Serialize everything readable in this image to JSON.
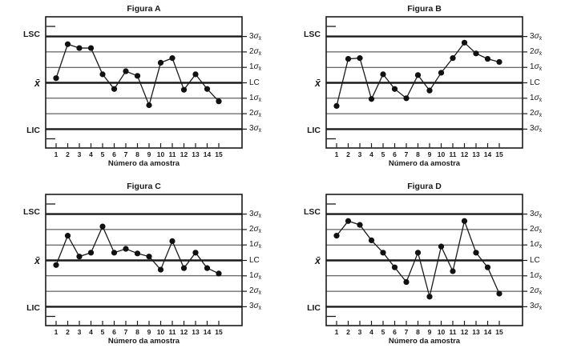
{
  "figure": {
    "background": "#ffffff",
    "ink_color": "#1a1a1a",
    "thin_line_color": "#3a3a3a"
  },
  "chart_data": [
    {
      "type": "line",
      "title": "Figura A",
      "xlabel": "Número da amostra",
      "x": [
        "1",
        "2",
        "3",
        "4",
        "5",
        "6",
        "7",
        "8",
        "9",
        "10",
        "11",
        "12",
        "13",
        "14",
        "15"
      ],
      "values_sigma": [
        0.3,
        2.5,
        2.25,
        2.25,
        0.55,
        -0.4,
        0.75,
        0.45,
        -1.45,
        1.3,
        1.6,
        -0.45,
        0.55,
        -0.4,
        -1.2
      ],
      "y_units": "sigma_from_center_line",
      "sigma_lines": [
        3,
        2,
        1,
        0,
        -1,
        -2,
        -3
      ],
      "plot_range_sigma": [
        -4.25,
        4.25
      ],
      "left_labels": {
        "lsc": "LSC",
        "center": "x̄",
        "lic": "LIC"
      },
      "right_labels": [
        {
          "coef": "3",
          "sym": "σ",
          "sub": "x̄"
        },
        {
          "coef": "2",
          "sym": "σ",
          "sub": "x̄"
        },
        {
          "coef": "1",
          "sym": "σ",
          "sub": "x̄"
        },
        {
          "coef": "LC",
          "sym": "",
          "sub": ""
        },
        {
          "coef": "1",
          "sym": "σ",
          "sub": "x̄"
        },
        {
          "coef": "2",
          "sym": "σ",
          "sub": "x̄"
        },
        {
          "coef": "3",
          "sym": "σ",
          "sub": "x̄"
        }
      ],
      "line_color": "#1a1a1a",
      "marker_color": "#111111"
    },
    {
      "type": "line",
      "title": "Figura B",
      "xlabel": "Número da amostra",
      "x": [
        "1",
        "2",
        "3",
        "4",
        "5",
        "6",
        "7",
        "8",
        "9",
        "10",
        "11",
        "12",
        "13",
        "14",
        "15"
      ],
      "values_sigma": [
        -1.5,
        1.55,
        1.6,
        -1.05,
        0.55,
        -0.4,
        -1.0,
        0.5,
        -0.5,
        0.65,
        1.6,
        2.6,
        1.9,
        1.55,
        1.35
      ],
      "y_units": "sigma_from_center_line",
      "sigma_lines": [
        3,
        2,
        1,
        0,
        -1,
        -2,
        -3
      ],
      "plot_range_sigma": [
        -4.25,
        4.25
      ],
      "left_labels": {
        "lsc": "LSC",
        "center": "x̄",
        "lic": "LIC"
      },
      "right_labels": [
        {
          "coef": "3",
          "sym": "σ",
          "sub": "x̄"
        },
        {
          "coef": "2",
          "sym": "σ",
          "sub": "x̄"
        },
        {
          "coef": "1",
          "sym": "σ",
          "sub": "x̄"
        },
        {
          "coef": "LC",
          "sym": "",
          "sub": ""
        },
        {
          "coef": "1",
          "sym": "σ",
          "sub": "x̄"
        },
        {
          "coef": "2",
          "sym": "σ",
          "sub": "x̄"
        },
        {
          "coef": "3",
          "sym": "σ",
          "sub": "x̄"
        }
      ],
      "line_color": "#1a1a1a",
      "marker_color": "#111111"
    },
    {
      "type": "line",
      "title": "Figura C",
      "xlabel": "Número da amostra",
      "x": [
        "1",
        "2",
        "3",
        "4",
        "5",
        "6",
        "7",
        "8",
        "9",
        "10",
        "11",
        "12",
        "13",
        "14",
        "15"
      ],
      "values_sigma": [
        -0.3,
        1.6,
        0.25,
        0.5,
        2.2,
        0.5,
        0.75,
        0.45,
        0.25,
        -0.6,
        1.25,
        -0.5,
        0.5,
        -0.5,
        -0.85
      ],
      "y_units": "sigma_from_center_line",
      "sigma_lines": [
        3,
        2,
        1,
        0,
        -1,
        -2,
        -3
      ],
      "plot_range_sigma": [
        -4.25,
        4.25
      ],
      "left_labels": {
        "lsc": "LSC",
        "center": "x̄",
        "lic": "LIC"
      },
      "right_labels": [
        {
          "coef": "3",
          "sym": "σ",
          "sub": "x̄"
        },
        {
          "coef": "2",
          "sym": "σ",
          "sub": "x̄"
        },
        {
          "coef": "1",
          "sym": "σ",
          "sub": "x̄"
        },
        {
          "coef": "LC",
          "sym": "",
          "sub": ""
        },
        {
          "coef": "1",
          "sym": "σ",
          "sub": "x̄"
        },
        {
          "coef": "2",
          "sym": "σ",
          "sub": "x̄"
        },
        {
          "coef": "3",
          "sym": "σ",
          "sub": "x̄"
        }
      ],
      "line_color": "#1a1a1a",
      "marker_color": "#111111"
    },
    {
      "type": "line",
      "title": "Figura D",
      "xlabel": "Número da amostra",
      "x": [
        "1",
        "2",
        "3",
        "4",
        "5",
        "6",
        "7",
        "8",
        "9",
        "10",
        "11",
        "12",
        "13",
        "14",
        "15"
      ],
      "values_sigma": [
        1.6,
        2.55,
        2.3,
        1.3,
        0.5,
        -0.45,
        -1.4,
        0.5,
        -2.35,
        0.9,
        -0.7,
        2.55,
        0.5,
        -0.45,
        -2.15
      ],
      "y_units": "sigma_from_center_line",
      "sigma_lines": [
        3,
        2,
        1,
        0,
        -1,
        -2,
        -3
      ],
      "plot_range_sigma": [
        -4.25,
        4.25
      ],
      "left_labels": {
        "lsc": "LSC",
        "center": "x̄",
        "lic": "LIC"
      },
      "right_labels": [
        {
          "coef": "3",
          "sym": "σ",
          "sub": "x̄"
        },
        {
          "coef": "2",
          "sym": "σ",
          "sub": "x̄"
        },
        {
          "coef": "1",
          "sym": "σ",
          "sub": "x̄"
        },
        {
          "coef": "LC",
          "sym": "",
          "sub": ""
        },
        {
          "coef": "1",
          "sym": "σ",
          "sub": "x̄"
        },
        {
          "coef": "2",
          "sym": "σ",
          "sub": "x̄"
        },
        {
          "coef": "3",
          "sym": "σ",
          "sub": "x̄"
        }
      ],
      "line_color": "#1a1a1a",
      "marker_color": "#111111"
    }
  ]
}
